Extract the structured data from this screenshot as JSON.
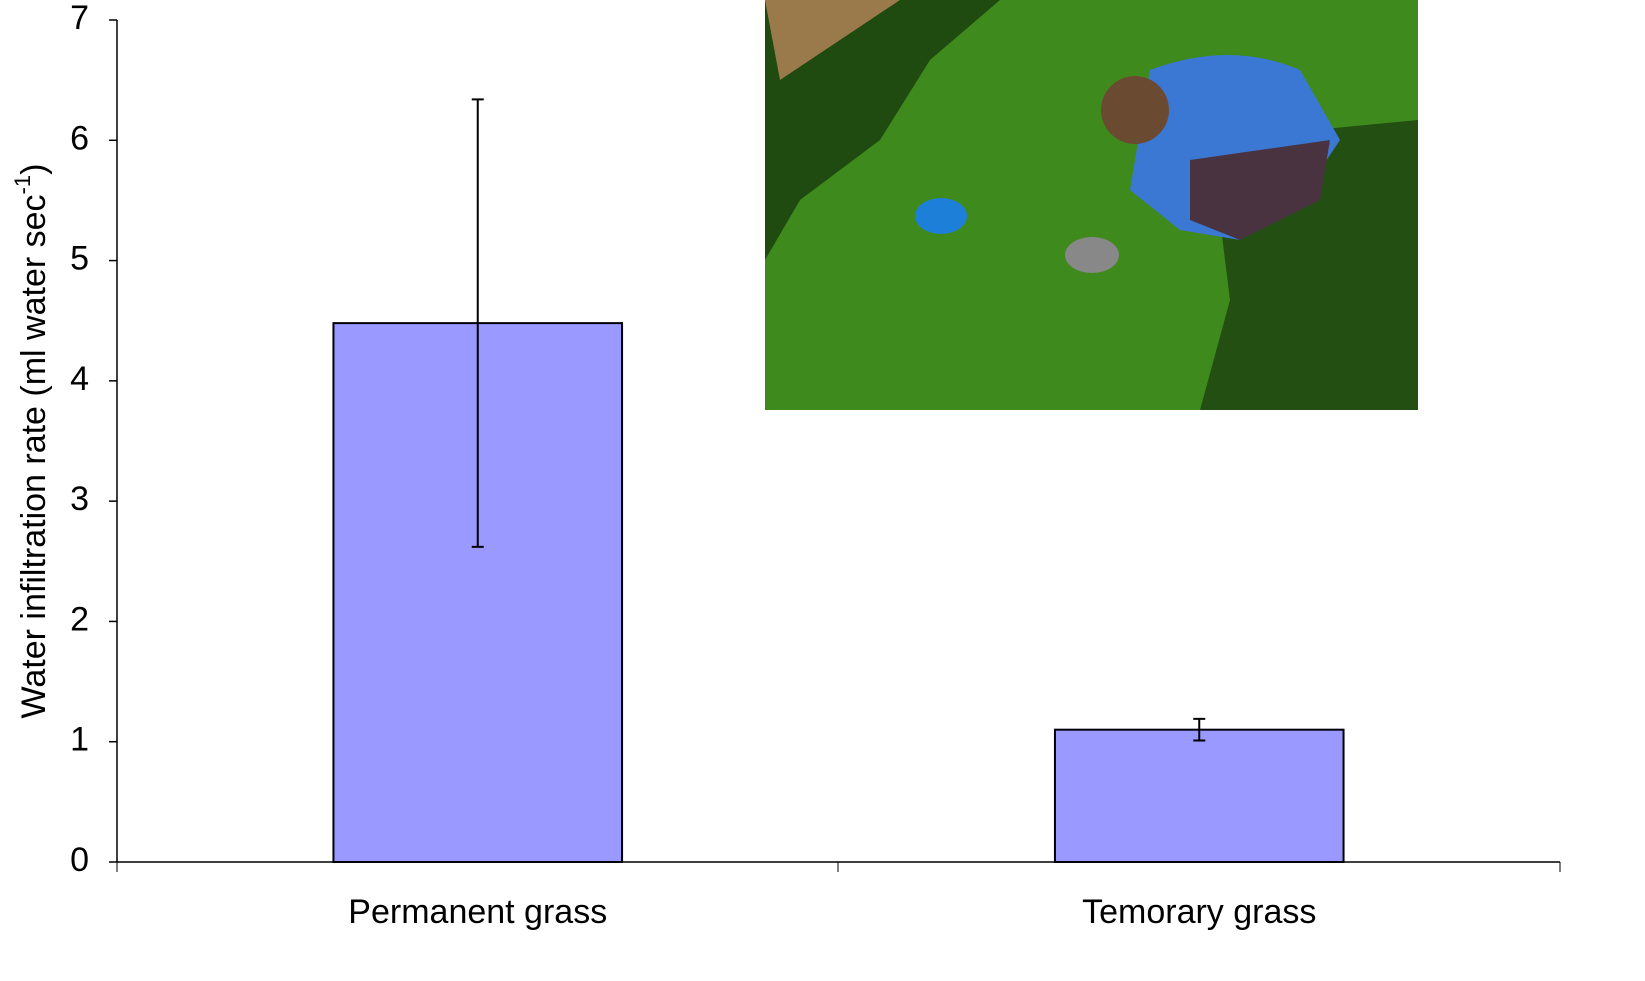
{
  "chart_data": {
    "type": "bar",
    "y_label": {
      "text": "Water infiltration rate (ml water sec",
      "superscript": "-1",
      "suffix": ")"
    },
    "categories": [
      "Permanent grass",
      "Temorary grass"
    ],
    "values": [
      4.48,
      1.1
    ],
    "errors": [
      1.86,
      0.09
    ],
    "color": "#9999ff",
    "ylim": [
      0,
      7
    ],
    "yticks": [
      0,
      1,
      2,
      3,
      4,
      5,
      6,
      7
    ],
    "grid": false
  }
}
